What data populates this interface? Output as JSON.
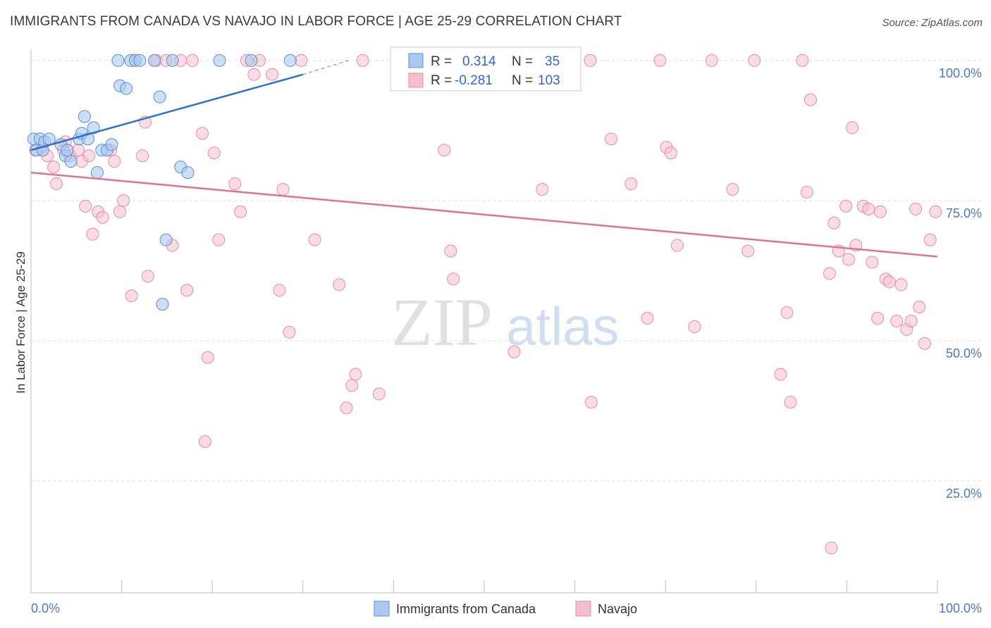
{
  "title": "IMMIGRANTS FROM CANADA VS NAVAJO IN LABOR FORCE | AGE 25-29 CORRELATION CHART",
  "source": "Source: ZipAtlas.com",
  "watermark": {
    "zip": "ZIP",
    "atlas": "atlas"
  },
  "chart_data": {
    "type": "scatter",
    "title": "IMMIGRANTS FROM CANADA VS NAVAJO IN LABOR FORCE | AGE 25-29 CORRELATION CHART",
    "ylabel": "In Labor Force | Age 25-29",
    "xlabel": "",
    "xlim": [
      0,
      100
    ],
    "ylim": [
      5,
      102
    ],
    "x_tick_labels": [
      "0.0%",
      "100.0%"
    ],
    "y_ticks": [
      {
        "value": 100,
        "label": "100.0%"
      },
      {
        "value": 75,
        "label": "75.0%"
      },
      {
        "value": 50,
        "label": "50.0%"
      },
      {
        "value": 25,
        "label": "25.0%"
      }
    ],
    "legend": [
      {
        "series": "Immigrants from Canada",
        "r_label": "R =",
        "r": "0.314",
        "n_label": "N =",
        "n": "35"
      },
      {
        "series": "Navajo",
        "r_label": "R =",
        "r": "-0.281",
        "n_label": "N =",
        "n": "103"
      }
    ],
    "colors": {
      "canada_fill": "#a9c9f0",
      "canada_stroke": "#5b8fd6",
      "canada_line": "#2f6fcc",
      "navajo_fill": "#f6bfd0",
      "navajo_stroke": "#e58aa8",
      "navajo_line": "#e0709a",
      "tick_blue": "#4a78c8"
    },
    "series": [
      {
        "name": "Immigrants from Canada",
        "trend": {
          "x0": 0,
          "y0": 84,
          "x1": 30,
          "y1": 97.5,
          "dash_to_x": 35,
          "dash_to_y": 100
        },
        "points": [
          [
            0.3,
            86
          ],
          [
            0.6,
            84
          ],
          [
            1.0,
            86
          ],
          [
            1.3,
            84
          ],
          [
            1.5,
            85.5
          ],
          [
            2.0,
            86
          ],
          [
            3.3,
            85
          ],
          [
            3.8,
            83
          ],
          [
            4.4,
            82
          ],
          [
            4.0,
            84
          ],
          [
            5.3,
            86
          ],
          [
            5.6,
            87
          ],
          [
            5.9,
            90
          ],
          [
            6.3,
            86
          ],
          [
            6.9,
            88
          ],
          [
            7.3,
            80
          ],
          [
            7.8,
            84
          ],
          [
            8.4,
            84
          ],
          [
            8.9,
            85
          ],
          [
            9.6,
            100
          ],
          [
            9.8,
            95.5
          ],
          [
            10.5,
            95
          ],
          [
            11.0,
            100
          ],
          [
            11.5,
            100
          ],
          [
            12.0,
            100
          ],
          [
            13.6,
            100
          ],
          [
            14.2,
            93.5
          ],
          [
            14.9,
            68
          ],
          [
            14.5,
            56.5
          ],
          [
            15.6,
            100
          ],
          [
            16.5,
            81
          ],
          [
            17.3,
            80
          ],
          [
            20.8,
            100
          ],
          [
            24.3,
            100
          ],
          [
            28.6,
            100
          ]
        ]
      },
      {
        "name": "Navajo",
        "trend": {
          "x0": 0,
          "y0": 80,
          "x1": 100,
          "y1": 65
        },
        "points": [
          [
            0.5,
            84
          ],
          [
            1.2,
            84.5
          ],
          [
            1.8,
            83
          ],
          [
            2.5,
            81
          ],
          [
            2.8,
            78
          ],
          [
            3.6,
            84
          ],
          [
            3.8,
            85.5
          ],
          [
            4.3,
            83
          ],
          [
            5.2,
            84
          ],
          [
            5.6,
            82
          ],
          [
            6.0,
            74
          ],
          [
            6.4,
            83
          ],
          [
            6.8,
            69
          ],
          [
            7.4,
            73
          ],
          [
            7.9,
            72
          ],
          [
            8.8,
            84
          ],
          [
            9.2,
            82
          ],
          [
            9.8,
            73
          ],
          [
            10.2,
            75
          ],
          [
            11.1,
            58
          ],
          [
            11.5,
            100
          ],
          [
            12.3,
            83
          ],
          [
            12.6,
            89
          ],
          [
            12.9,
            61.5
          ],
          [
            13.8,
            100
          ],
          [
            14.9,
            100
          ],
          [
            15.6,
            67
          ],
          [
            16.5,
            100
          ],
          [
            17.2,
            59
          ],
          [
            17.8,
            100
          ],
          [
            18.9,
            87
          ],
          [
            19.5,
            47
          ],
          [
            19.2,
            32
          ],
          [
            20.2,
            83.5
          ],
          [
            20.7,
            68
          ],
          [
            22.5,
            78
          ],
          [
            23.1,
            73
          ],
          [
            23.8,
            100
          ],
          [
            24.6,
            97.5
          ],
          [
            25.2,
            100
          ],
          [
            26.6,
            97.5
          ],
          [
            27.4,
            59
          ],
          [
            27.8,
            77
          ],
          [
            28.5,
            51.5
          ],
          [
            29.8,
            100
          ],
          [
            31.3,
            68
          ],
          [
            34.0,
            60
          ],
          [
            34.8,
            38
          ],
          [
            35.4,
            42
          ],
          [
            35.8,
            44
          ],
          [
            36.6,
            100
          ],
          [
            38.4,
            40.5
          ],
          [
            40.5,
            100
          ],
          [
            45.6,
            84
          ],
          [
            46.3,
            66
          ],
          [
            46.6,
            61
          ],
          [
            52.8,
            100
          ],
          [
            53.3,
            48
          ],
          [
            56.4,
            77
          ],
          [
            61.7,
            100
          ],
          [
            61.8,
            39
          ],
          [
            64.0,
            86
          ],
          [
            66.2,
            78
          ],
          [
            68.0,
            54
          ],
          [
            69.4,
            100
          ],
          [
            70.1,
            84.5
          ],
          [
            70.6,
            83.5
          ],
          [
            71.3,
            67
          ],
          [
            73.2,
            52.5
          ],
          [
            75.1,
            100
          ],
          [
            77.4,
            77
          ],
          [
            79.1,
            66
          ],
          [
            79.8,
            100
          ],
          [
            82.7,
            44
          ],
          [
            83.4,
            55
          ],
          [
            83.8,
            39
          ],
          [
            85.1,
            100
          ],
          [
            85.6,
            76.5
          ],
          [
            86.0,
            93
          ],
          [
            88.1,
            62
          ],
          [
            88.3,
            13
          ],
          [
            88.6,
            71
          ],
          [
            89.1,
            66
          ],
          [
            89.9,
            74
          ],
          [
            90.2,
            64.5
          ],
          [
            90.6,
            88
          ],
          [
            91.0,
            67
          ],
          [
            91.8,
            74
          ],
          [
            92.4,
            73.5
          ],
          [
            93.7,
            73
          ],
          [
            92.8,
            64
          ],
          [
            93.4,
            54
          ],
          [
            94.3,
            61
          ],
          [
            94.7,
            60.5
          ],
          [
            95.5,
            53.5
          ],
          [
            96.0,
            60
          ],
          [
            96.6,
            52
          ],
          [
            97.1,
            53.5
          ],
          [
            97.6,
            73.5
          ],
          [
            98.0,
            56
          ],
          [
            98.6,
            49.5
          ],
          [
            99.2,
            68
          ],
          [
            99.8,
            73
          ]
        ]
      }
    ]
  },
  "bottom_legend": [
    {
      "label": "Immigrants from Canada"
    },
    {
      "label": "Navajo"
    }
  ]
}
